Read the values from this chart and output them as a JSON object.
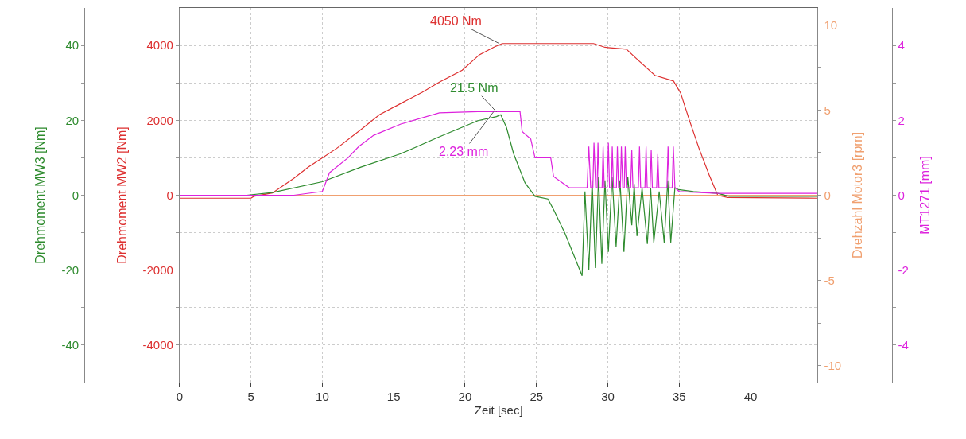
{
  "chart_data": [
    {
      "type": "line",
      "xlabel": "Zeit [sec]",
      "ylabel": "Drehmoment MW2 [Nm]",
      "y2label": "Drehzahl Motor3 [rpm]",
      "y3label": "Drehmoment MW3 [Nm]",
      "xlim": [
        0,
        44.7
      ],
      "xticks": [
        0,
        5,
        10,
        15,
        20,
        25,
        30,
        35,
        40
      ],
      "ylim": [
        -5000,
        5000
      ],
      "yticks": [
        -4000,
        {
          "value": -3000,
          "label": null
        },
        -2000,
        {
          "value": -1000,
          "label": null
        },
        0,
        {
          "value": 1000,
          "label": null
        },
        2000,
        {
          "value": 3000,
          "label": null
        },
        4000
      ],
      "y2lim": [
        -11,
        11
      ],
      "y2ticks": [
        -10,
        {
          "value": -7.5,
          "label": null
        },
        -5,
        {
          "value": -2.5,
          "label": null
        },
        0,
        {
          "value": 2.5,
          "label": null
        },
        5,
        {
          "value": 7.5,
          "label": null
        },
        10
      ],
      "y3lim": [
        -50,
        50
      ],
      "y3ticks": [
        -40,
        {
          "value": -30,
          "label": null
        },
        -20,
        {
          "value": -10,
          "label": null
        },
        0,
        {
          "value": 10,
          "label": null
        },
        20,
        {
          "value": 30,
          "label": null
        },
        40
      ],
      "grid": true,
      "series": [
        {
          "color": "#dd3030",
          "x": [
            0,
            5,
            5.2,
            6.5,
            8,
            9,
            10,
            11,
            12.7,
            14,
            15.5,
            17,
            18.2,
            19.8,
            21,
            22,
            22.6,
            29,
            29.8,
            31.3,
            32,
            33.3,
            34.6,
            35.1,
            35.7,
            36.4,
            37.1,
            37.7,
            38.4,
            44.7
          ],
          "values": [
            -80,
            -80,
            -30,
            60,
            450,
            750,
            1000,
            1250,
            1750,
            2150,
            2450,
            2750,
            3020,
            3340,
            3750,
            3950,
            4050,
            4050,
            3950,
            3900,
            3650,
            3200,
            3050,
            2730,
            2020,
            1240,
            540,
            0,
            -60,
            -80
          ]
        },
        {
          "color": "#2e8b2e",
          "axis": "y3",
          "x": [
            0,
            4.7,
            6.5,
            10,
            12.7,
            15.5,
            18.2,
            20.9,
            22.2,
            22.5,
            22.9,
            23.4,
            24.2,
            24.9,
            25.8,
            26.2,
            27,
            27.3,
            28.2,
            28.4,
            28.67,
            28.9,
            29.13,
            29.35,
            29.58,
            29.8,
            30.04,
            30.3,
            30.58,
            30.85,
            31.13,
            31.4,
            31.68,
            31.85,
            32.04,
            32.4,
            32.77,
            33.0,
            33.22,
            33.6,
            33.95,
            34.2,
            34.41,
            34.7,
            34.95,
            36,
            37.7,
            38.5,
            44.7
          ],
          "values": [
            0,
            0,
            0.7,
            3.6,
            7.5,
            11.1,
            15.6,
            19.9,
            21,
            21.5,
            18.1,
            11.1,
            3.3,
            -0.3,
            -1,
            -3.8,
            -10.2,
            -13,
            -21.5,
            1,
            -20,
            4,
            -19.4,
            5,
            -18.3,
            4,
            -15.1,
            5,
            -13.7,
            4,
            -15.1,
            5,
            -8,
            3,
            -10.9,
            2,
            -13,
            2,
            -12.6,
            1,
            -12.6,
            4,
            -12.6,
            2,
            1.5,
            1,
            0.5,
            -0.3,
            -0.3
          ]
        },
        {
          "color": "#f0a070",
          "axis": "y2",
          "x": [
            0,
            44.7
          ],
          "values": [
            0,
            0
          ]
        }
      ],
      "annotations": [
        {
          "text": "4050 Nm",
          "x": 22.4,
          "y": 4050
        },
        "21.5 Nm"
      ]
    },
    {
      "type": "line",
      "ylabel": "MT1271 [mm]",
      "xlim": [
        0,
        44.7
      ],
      "ylim": [
        -5,
        5
      ],
      "yticks": [
        -4,
        {
          "value": -3,
          "label": null
        },
        -2,
        {
          "value": -1,
          "label": null
        },
        0,
        {
          "value": 1,
          "label": null
        },
        2,
        {
          "value": 3,
          "label": null
        },
        4
      ],
      "tick_labels": "y",
      "series": [
        {
          "color": "#dd22dd",
          "x": [
            0,
            6.5,
            8,
            10,
            10.5,
            11.8,
            12.55,
            13.6,
            15.5,
            18.2,
            20.9,
            23.85,
            24.0,
            24.6,
            24.9,
            26.0,
            26.2,
            27.3,
            28.55,
            28.67,
            28.8,
            28.95,
            29.03,
            29.15,
            29.25,
            29.31,
            29.4,
            29.6,
            29.67,
            29.75,
            29.95,
            30.04,
            30.12,
            30.25,
            30.31,
            30.4,
            30.6,
            30.67,
            30.75,
            30.88,
            30.95,
            31.05,
            31.15,
            31.22,
            31.3,
            31.6,
            31.68,
            31.76,
            32.14,
            32.22,
            32.3,
            32.6,
            32.68,
            32.76,
            32.96,
            33.04,
            33.12,
            33.42,
            33.5,
            33.58,
            34.14,
            34.22,
            34.3,
            34.51,
            34.59,
            34.7,
            35,
            37.7,
            44.7
          ],
          "values": [
            0,
            0,
            0,
            0.1,
            0.6,
            1.0,
            1.3,
            1.6,
            1.9,
            2.2,
            2.23,
            2.23,
            1.7,
            1.5,
            1.0,
            1.0,
            0.5,
            0.2,
            0.2,
            1.3,
            0.2,
            0.2,
            1.4,
            0.2,
            0.2,
            1.4,
            0.2,
            0.2,
            1.3,
            0.2,
            0.2,
            1.4,
            0.2,
            0.2,
            1.3,
            0.2,
            0.2,
            1.3,
            0.2,
            0.2,
            1.3,
            0.2,
            0.2,
            1.3,
            0.2,
            0.2,
            1.2,
            0.2,
            0.2,
            1.3,
            0.2,
            0.2,
            1.3,
            0.2,
            0.2,
            1.2,
            0.2,
            0.2,
            1.1,
            0.2,
            0.2,
            1.3,
            0.2,
            0.2,
            1.3,
            0.2,
            0.1,
            0.05,
            0.05
          ]
        }
      ],
      "annotations": [
        {
          "text": "2.23 mm",
          "x": 22.0,
          "y": 2.23
        }
      ]
    }
  ]
}
